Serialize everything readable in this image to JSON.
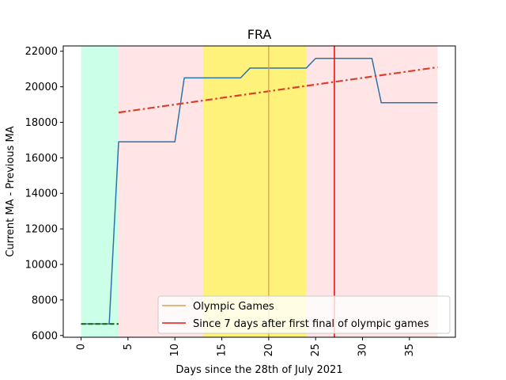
{
  "chart_data": {
    "type": "line",
    "title": "FRA",
    "xlabel": "Days since the 28th of July 2021",
    "ylabel": "Current MA - Previous MA",
    "xlim": [
      -1.9,
      39.9
    ],
    "ylim": [
      5900,
      22300
    ],
    "xticks": [
      0,
      5,
      10,
      15,
      20,
      25,
      30,
      35
    ],
    "yticks": [
      6000,
      8000,
      10000,
      12000,
      14000,
      16000,
      18000,
      20000,
      22000
    ],
    "grid": false,
    "legend_position": "lower right",
    "shaded_regions": [
      {
        "x0": 0,
        "x1": 4,
        "color": "#ccffe8"
      },
      {
        "x0": 4,
        "x1": 13,
        "color": "#ffe5e5"
      },
      {
        "x0": 13,
        "x1": 24,
        "color": "#fff27a"
      },
      {
        "x0": 24,
        "x1": 38,
        "color": "#ffe5e5"
      }
    ],
    "series": [
      {
        "color": "#2e72ab",
        "style": "solid",
        "x": [
          0,
          1,
          2,
          3,
          4,
          5,
          6,
          7,
          8,
          9,
          10,
          11,
          12,
          13,
          14,
          15,
          16,
          17,
          18,
          19,
          20,
          21,
          22,
          23,
          24,
          25,
          26,
          27,
          28,
          29,
          30,
          31,
          32,
          33,
          34,
          35,
          36,
          37,
          38
        ],
        "y": [
          6650,
          6650,
          6650,
          6650,
          16900,
          16900,
          16900,
          16900,
          16900,
          16900,
          16900,
          20500,
          20500,
          20500,
          20500,
          20500,
          20500,
          20500,
          21050,
          21050,
          21050,
          21050,
          21050,
          21050,
          21050,
          21600,
          21600,
          21600,
          21600,
          21600,
          21600,
          21600,
          19100,
          19100,
          19100,
          19100,
          19100,
          19100,
          19100
        ]
      },
      {
        "color": "#1a6b1a",
        "style": "dashed",
        "x": [
          0,
          4
        ],
        "y": [
          6650,
          6650
        ]
      },
      {
        "color": "#d9402a",
        "style": "dashdot",
        "x": [
          4,
          38
        ],
        "y": [
          18550,
          21100
        ]
      }
    ],
    "vlines": [
      {
        "x": 20,
        "color": "#d9a04f",
        "name": "Olympic Games"
      },
      {
        "x": 27,
        "color": "#ee1111",
        "name": "Since 7 days after first final of olympic games"
      }
    ],
    "legend": [
      {
        "label": "Olympic Games",
        "color": "#d9a04f"
      },
      {
        "label": "Since 7 days after first final of olympic games",
        "color": "#ee1111"
      }
    ]
  }
}
